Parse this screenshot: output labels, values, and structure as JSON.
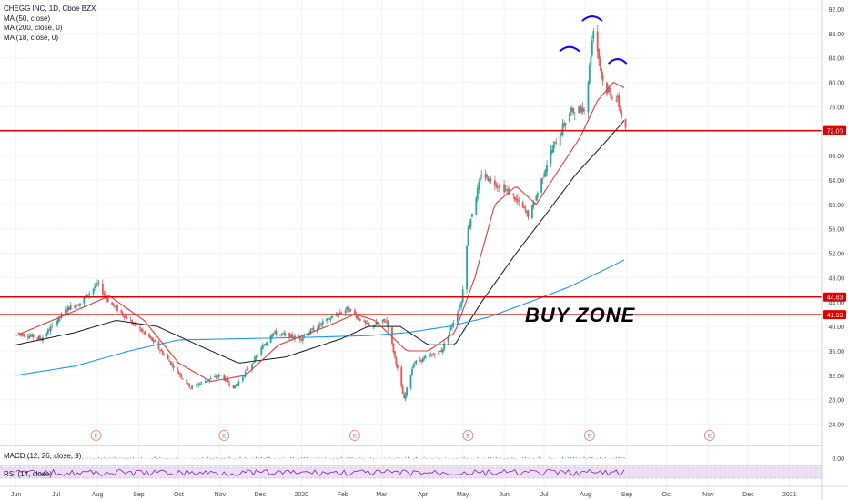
{
  "legend": {
    "symbol_line": "CHEGG INC, 1D, Cboe BZX",
    "ma50": "MA (50, close)",
    "ma200": "MA (200, close, 0)",
    "ma18": "MA (18, close, 0)"
  },
  "panels": {
    "macd_label": "MACD (12, 26, close, 9)",
    "macd_value": "0.00",
    "rsi_label": "RSI (14, close)"
  },
  "annotation": "BUY ZONE",
  "earnings_marker": "E",
  "colors": {
    "up": "#26a69a",
    "down": "#ef5350",
    "ma18": "#e53935",
    "ma50": "#131722",
    "ma200": "#2196f3",
    "level_line": "#e00000",
    "arcs": "#1500ff",
    "rsi_line": "#7b1fa2",
    "rsi_band": "#ece0f5"
  },
  "chart_data": {
    "type": "candlestick",
    "title": "CHEGG INC, 1D, Cboe BZX",
    "ylim": [
      22,
      92
    ],
    "y_ticks": [
      "92.00",
      "88.00",
      "84.00",
      "80.00",
      "76.00",
      "72.00",
      "68.00",
      "64.00",
      "60.00",
      "56.00",
      "52.00",
      "48.00",
      "44.00",
      "40.00",
      "36.00",
      "32.00",
      "28.00",
      "24.00"
    ],
    "x_ticks": [
      "Jun",
      "Jul",
      "Aug",
      "Sep",
      "Oct",
      "Nov",
      "Dec",
      "2020",
      "Feb",
      "Mar",
      "Apr",
      "May",
      "Jun",
      "Jul",
      "Aug",
      "Sep",
      "Oct",
      "Nov",
      "Dec",
      "2021"
    ],
    "price_path": [
      [
        "2019-06-01",
        39
      ],
      [
        "2019-06-20",
        38
      ],
      [
        "2019-07-10",
        43
      ],
      [
        "2019-07-20",
        44
      ],
      [
        "2019-08-01",
        47
      ],
      [
        "2019-08-10",
        44
      ],
      [
        "2019-08-25",
        41
      ],
      [
        "2019-09-10",
        38
      ],
      [
        "2019-09-25",
        34
      ],
      [
        "2019-10-10",
        30
      ],
      [
        "2019-10-20",
        31
      ],
      [
        "2019-11-01",
        32
      ],
      [
        "2019-11-12",
        30
      ],
      [
        "2019-11-25",
        34
      ],
      [
        "2019-12-10",
        39
      ],
      [
        "2019-12-31",
        38
      ],
      [
        "2020-01-20",
        41
      ],
      [
        "2020-02-05",
        43
      ],
      [
        "2020-02-20",
        40
      ],
      [
        "2020-03-05",
        41
      ],
      [
        "2020-03-18",
        28
      ],
      [
        "2020-03-25",
        34
      ],
      [
        "2020-04-15",
        36
      ],
      [
        "2020-04-30",
        44
      ],
      [
        "2020-05-05",
        56
      ],
      [
        "2020-05-15",
        65
      ],
      [
        "2020-06-05",
        62
      ],
      [
        "2020-06-20",
        58
      ],
      [
        "2020-07-05",
        68
      ],
      [
        "2020-07-20",
        75
      ],
      [
        "2020-08-01",
        76
      ],
      [
        "2020-08-07",
        89
      ],
      [
        "2020-08-15",
        79
      ],
      [
        "2020-08-25",
        77
      ],
      [
        "2020-08-31",
        72.09
      ]
    ],
    "ma18_path": [
      [
        "2019-06-01",
        38.5
      ],
      [
        "2019-07-20",
        43
      ],
      [
        "2019-08-10",
        45
      ],
      [
        "2019-09-05",
        41
      ],
      [
        "2019-10-01",
        34
      ],
      [
        "2019-10-25",
        31
      ],
      [
        "2019-11-20",
        32
      ],
      [
        "2019-12-15",
        37
      ],
      [
        "2020-01-20",
        40
      ],
      [
        "2020-02-10",
        42
      ],
      [
        "2020-02-25",
        41
      ],
      [
        "2020-03-20",
        36
      ],
      [
        "2020-04-05",
        36
      ],
      [
        "2020-04-25",
        39
      ],
      [
        "2020-05-10",
        48
      ],
      [
        "2020-05-25",
        60
      ],
      [
        "2020-06-10",
        63
      ],
      [
        "2020-06-25",
        60
      ],
      [
        "2020-07-10",
        65
      ],
      [
        "2020-07-28",
        71
      ],
      [
        "2020-08-10",
        77
      ],
      [
        "2020-08-22",
        80
      ],
      [
        "2020-08-31",
        79
      ]
    ],
    "ma50_path": [
      [
        "2019-06-01",
        37
      ],
      [
        "2019-07-15",
        39
      ],
      [
        "2019-08-15",
        41
      ],
      [
        "2019-09-15",
        40
      ],
      [
        "2019-10-15",
        37
      ],
      [
        "2019-11-15",
        34
      ],
      [
        "2019-12-20",
        35
      ],
      [
        "2020-01-31",
        38
      ],
      [
        "2020-02-20",
        40
      ],
      [
        "2020-03-15",
        40
      ],
      [
        "2020-04-05",
        37
      ],
      [
        "2020-04-25",
        37
      ],
      [
        "2020-05-15",
        44
      ],
      [
        "2020-06-10",
        52
      ],
      [
        "2020-07-01",
        58
      ],
      [
        "2020-07-25",
        65
      ],
      [
        "2020-08-15",
        70
      ],
      [
        "2020-08-31",
        74
      ]
    ],
    "ma200_path": [
      [
        "2019-06-01",
        32
      ],
      [
        "2019-07-15",
        33.5
      ],
      [
        "2019-08-25",
        36
      ],
      [
        "2019-10-01",
        37.8
      ],
      [
        "2019-11-15",
        38
      ],
      [
        "2020-01-01",
        38.2
      ],
      [
        "2020-02-20",
        38.5
      ],
      [
        "2020-03-20",
        39
      ],
      [
        "2020-04-20",
        40
      ],
      [
        "2020-05-20",
        41.5
      ],
      [
        "2020-06-20",
        44
      ],
      [
        "2020-07-20",
        46.5
      ],
      [
        "2020-08-31",
        51
      ]
    ],
    "horizontal_levels": [
      {
        "value": 72.09,
        "label": "72.09"
      },
      {
        "value": 44.83,
        "label": "44.83"
      },
      {
        "value": 41.93,
        "label": "41.93"
      }
    ],
    "earnings_dates": [
      "2019-07-31",
      "2019-11-04",
      "2020-02-10",
      "2020-05-05",
      "2020-08-04",
      "2020-11-02"
    ]
  }
}
